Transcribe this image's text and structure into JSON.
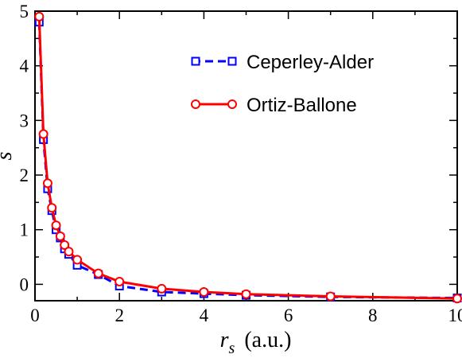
{
  "chart_data": {
    "type": "line",
    "title": "",
    "xlabel": {
      "main": "r",
      "sub": "s",
      "unit": "(a.u.)"
    },
    "ylabel": "s",
    "xlim": [
      0,
      10
    ],
    "ylim": [
      -0.3,
      5
    ],
    "xticks": [
      "0",
      "2",
      "4",
      "6",
      "8",
      "10"
    ],
    "xtick_values": [
      0,
      2,
      4,
      6,
      8,
      10
    ],
    "yticks": [
      "0",
      "1",
      "2",
      "3",
      "4",
      "5"
    ],
    "ytick_values": [
      0,
      1,
      2,
      3,
      4,
      5
    ],
    "grid": false,
    "legend_position": "top-right",
    "series": [
      {
        "name": "Ceperley-Alder",
        "color": "#0000ff",
        "line_style": "dashed",
        "marker": "square",
        "x": [
          0.1,
          0.2,
          0.3,
          0.4,
          0.5,
          0.6,
          0.7,
          0.8,
          1.0,
          1.5,
          2.0,
          3.0,
          4.0,
          5.0,
          7.0,
          10.0
        ],
        "y": [
          4.8,
          2.65,
          1.75,
          1.35,
          1.0,
          0.85,
          0.65,
          0.55,
          0.35,
          0.18,
          -0.03,
          -0.14,
          -0.17,
          -0.2,
          -0.23,
          -0.25
        ]
      },
      {
        "name": "Ortiz-Ballone",
        "color": "#ff0000",
        "line_style": "solid",
        "marker": "circle",
        "x": [
          0.1,
          0.2,
          0.3,
          0.4,
          0.5,
          0.6,
          0.7,
          0.8,
          1.0,
          1.5,
          2.0,
          3.0,
          4.0,
          5.0,
          7.0,
          10.0
        ],
        "y": [
          4.9,
          2.75,
          1.85,
          1.4,
          1.08,
          0.88,
          0.72,
          0.6,
          0.45,
          0.2,
          0.05,
          -0.08,
          -0.14,
          -0.18,
          -0.22,
          -0.26
        ]
      }
    ]
  }
}
